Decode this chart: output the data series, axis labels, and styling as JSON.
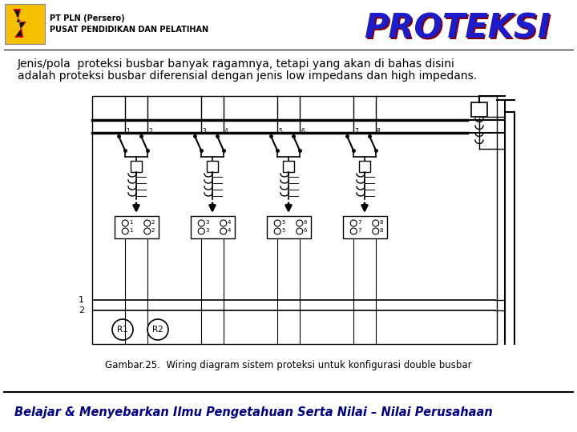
{
  "bg_color": "#ffffff",
  "logo_bg": "#f5c000",
  "title1": "PT PLN (Persero)",
  "title2": "PUSAT PENDIDIKAN DAN PELATIHAN",
  "proteksi": "PROTEKSI",
  "proteksi_blue": "#1c1ccc",
  "proteksi_dark": "#800000",
  "body1": "Jenis/pola  proteksi busbar banyak ragamnya, tetapi yang akan di bahas disini",
  "body2": "adalah proteksi busbar diferensial dengan jenis low impedans dan high impedans.",
  "caption": "Gambar.25.  Wiring diagram sistem proteksi untuk konfigurasi double busbar",
  "footer": "Belajar & Menyebarkan Ilmu Pengetahuan Serta Nilai – Nilai Perusahaan",
  "footer_color": "#00008b",
  "DL": 115,
  "DT": 120,
  "DR": 620,
  "DB": 430
}
